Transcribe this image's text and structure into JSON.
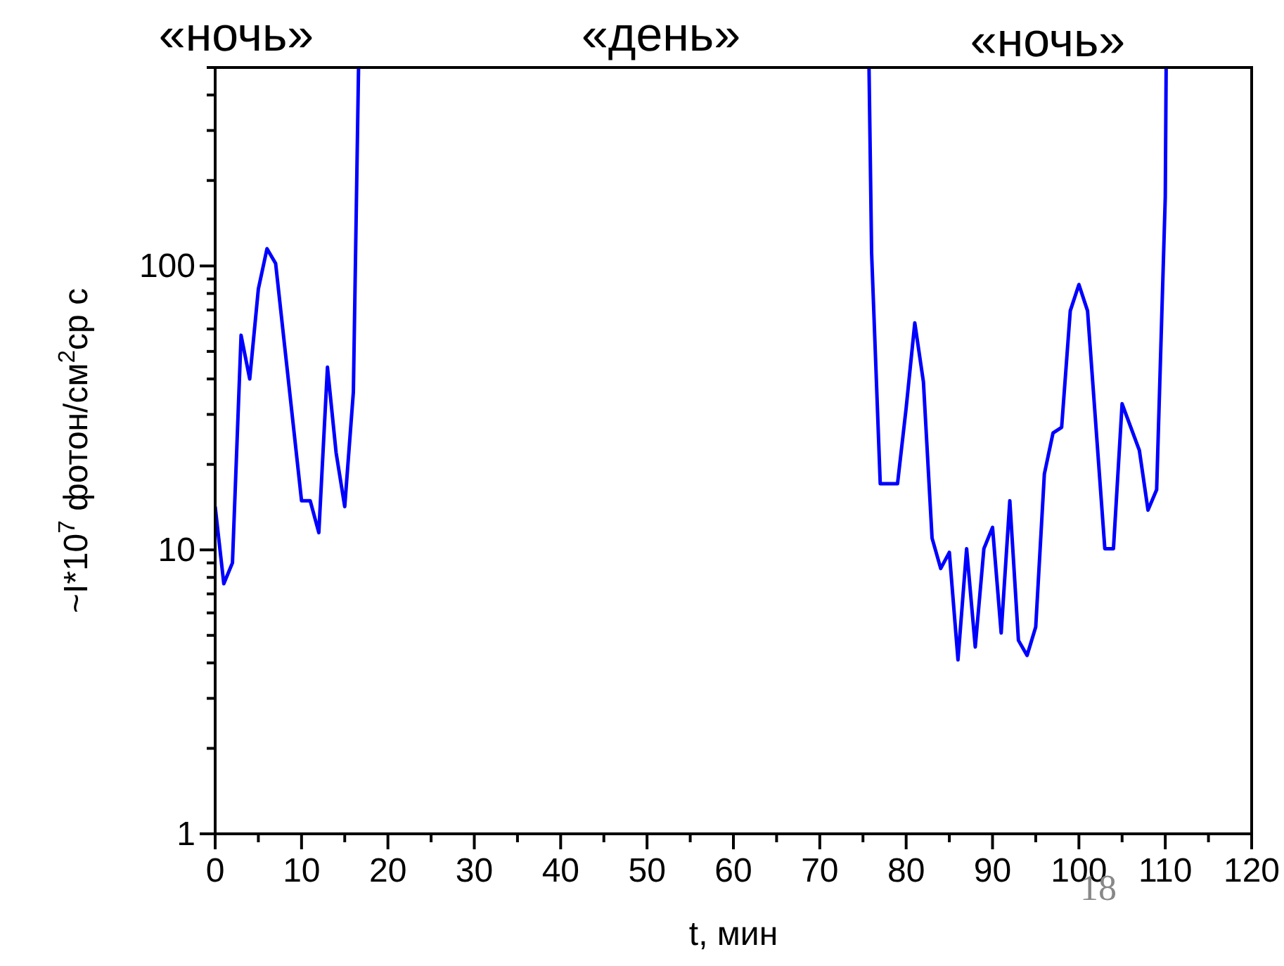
{
  "chart_data": {
    "type": "line",
    "xlabel": "t, мин",
    "ylabel": "~I*10$^{7}$ фотон/см$^{2}$ср с",
    "log": "y",
    "grid": false,
    "line_style": "solid",
    "annotations": [
      "«ночь»",
      "«день»",
      "«ночь»",
      "18"
    ],
    "xlim": [
      0,
      120
    ],
    "xticks": [
      0,
      {
        "value": 5,
        "label": null
      },
      10,
      {
        "value": 15,
        "label": null
      },
      20,
      {
        "value": 25,
        "label": null
      },
      30,
      {
        "value": 35,
        "label": null
      },
      40,
      {
        "value": 45,
        "label": null
      },
      50,
      {
        "value": 55,
        "label": null
      },
      60,
      {
        "value": 65,
        "label": null
      },
      70,
      {
        "value": 75,
        "label": null
      },
      80,
      {
        "value": 85,
        "label": null
      },
      90,
      {
        "value": 95,
        "label": null
      },
      100,
      {
        "value": 105,
        "label": null
      },
      110,
      {
        "value": 115,
        "label": null
      },
      120
    ],
    "ylim": [
      1,
      500
    ],
    "yticks": [
      1,
      {
        "value": 2,
        "label": null
      },
      {
        "value": 3,
        "label": null
      },
      {
        "value": 4,
        "label": null
      },
      {
        "value": 5,
        "label": null
      },
      {
        "value": 6,
        "label": null
      },
      {
        "value": 7,
        "label": null
      },
      {
        "value": 8,
        "label": null
      },
      {
        "value": 9,
        "label": null
      },
      10,
      {
        "value": 20,
        "label": null
      },
      {
        "value": 30,
        "label": null
      },
      {
        "value": 40,
        "label": null
      },
      {
        "value": 50,
        "label": null
      },
      {
        "value": 60,
        "label": null
      },
      {
        "value": 70,
        "label": null
      },
      {
        "value": 80,
        "label": null
      },
      {
        "value": 90,
        "label": null
      },
      100,
      {
        "value": 200,
        "label": null
      },
      {
        "value": 300,
        "label": null
      },
      {
        "value": 400,
        "label": null
      },
      {
        "value": 500,
        "label": null
      }
    ],
    "series": [
      {
        "color": "#0000ff",
        "x": [
          0,
          1,
          2,
          3,
          4,
          5,
          6,
          7,
          10,
          11,
          12,
          13,
          14,
          15,
          16,
          16.6,
          null,
          75.7,
          76,
          77,
          79,
          80,
          81,
          82,
          83,
          84,
          85,
          86,
          87,
          88,
          89,
          90,
          91,
          92,
          93,
          94,
          95,
          96,
          97,
          98,
          99,
          100,
          101,
          103,
          104,
          105,
          107,
          108,
          109,
          110,
          110.1
        ],
        "values": [
          14.2,
          7.6,
          9.0,
          57,
          40,
          83,
          115,
          102,
          14.9,
          14.9,
          11.5,
          44,
          22,
          14.2,
          36,
          500,
          null,
          500,
          111,
          17.1,
          17.1,
          31.6,
          63,
          39,
          11,
          8.6,
          9.8,
          4.1,
          10.1,
          4.55,
          10.1,
          12,
          5.1,
          14.9,
          4.8,
          4.25,
          5.35,
          18.5,
          25.8,
          27,
          69.5,
          86,
          69.5,
          10.1,
          10.1,
          32.7,
          22.4,
          13.8,
          16.3,
          175,
          500
        ]
      }
    ]
  }
}
